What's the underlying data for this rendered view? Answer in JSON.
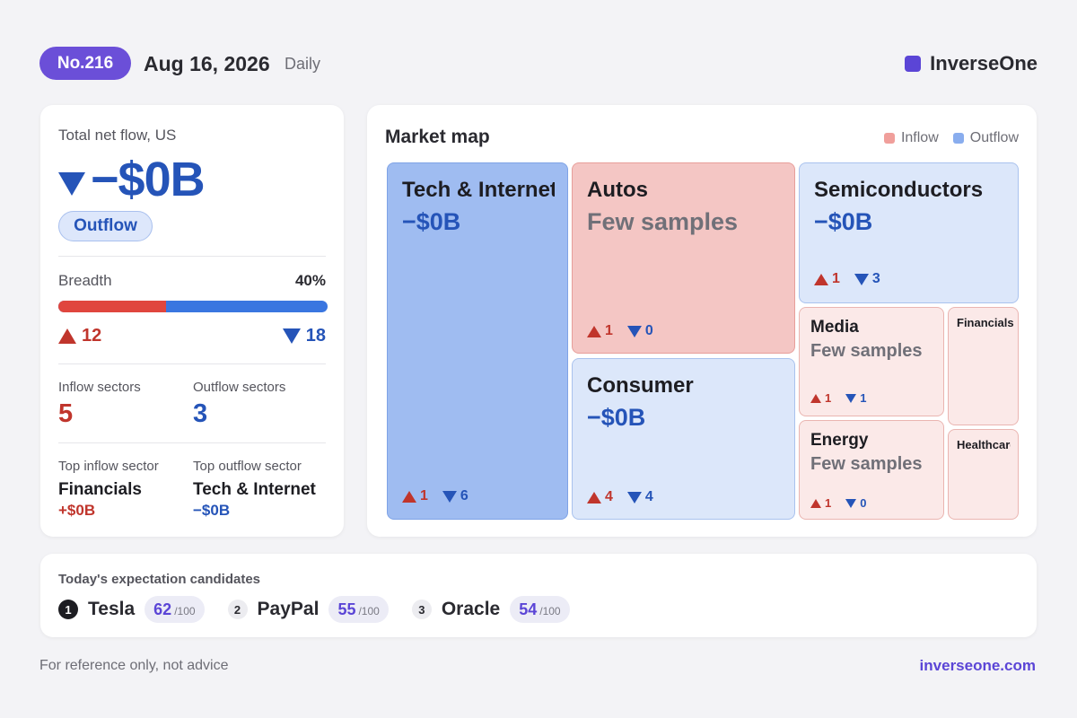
{
  "header": {
    "issue": "No.216",
    "date": "Aug 16, 2026",
    "frequency": "Daily",
    "brand": "InverseOne",
    "brand_color": "#5b45d6"
  },
  "summary": {
    "title": "Total net flow, US",
    "net_flow": "−$0B",
    "direction": "Outflow",
    "breadth_label": "Breadth",
    "breadth_pct": "40%",
    "breadth_fraction": 0.4,
    "up_count": "12",
    "down_count": "18",
    "inflow_sectors_label": "Inflow sectors",
    "inflow_sectors": "5",
    "outflow_sectors_label": "Outflow sectors",
    "outflow_sectors": "3",
    "top_inflow_label": "Top inflow sector",
    "top_inflow_name": "Financials",
    "top_inflow_value": "+$0B",
    "top_outflow_label": "Top outflow sector",
    "top_outflow_name": "Tech & Internet",
    "top_outflow_value": "−$0B"
  },
  "market_map": {
    "title": "Market map",
    "legend_inflow": "Inflow",
    "legend_outflow": "Outflow",
    "inflow_color": "#f09f9b",
    "outflow_color": "#89adee",
    "tiles": {
      "tech": {
        "name": "Tech & Internet",
        "value": "−$0B",
        "up": "1",
        "down": "6"
      },
      "autos": {
        "name": "Autos",
        "value": "Few samples",
        "up": "1",
        "down": "0"
      },
      "consumer": {
        "name": "Consumer",
        "value": "−$0B",
        "up": "4",
        "down": "4"
      },
      "semis": {
        "name": "Semiconductors",
        "value": "−$0B",
        "up": "1",
        "down": "3"
      },
      "media": {
        "name": "Media",
        "value": "Few samples",
        "up": "1",
        "down": "1"
      },
      "energy": {
        "name": "Energy",
        "value": "Few samples",
        "up": "1",
        "down": "0"
      },
      "financials": {
        "name": "Financials"
      },
      "healthcare": {
        "name": "Healthcare"
      }
    }
  },
  "candidates": {
    "title": "Today's expectation candidates",
    "denominator": "/100",
    "items": [
      {
        "rank": "1",
        "name": "Tesla",
        "score": "62"
      },
      {
        "rank": "2",
        "name": "PayPal",
        "score": "55"
      },
      {
        "rank": "3",
        "name": "Oracle",
        "score": "54"
      }
    ]
  },
  "footer": {
    "disclaimer": "For reference only, not advice",
    "site": "inverseone.com"
  }
}
